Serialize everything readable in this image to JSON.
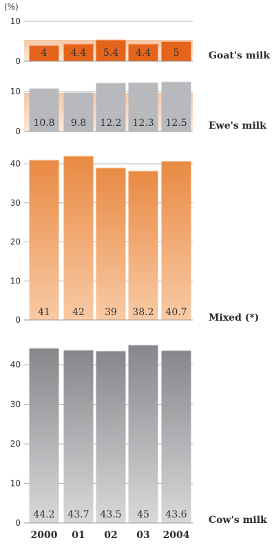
{
  "unit_label": "(%)",
  "chart_data": [
    {
      "type": "bar",
      "name": "Goat's milk",
      "categories": [
        "2000",
        "01",
        "02",
        "03",
        "2004"
      ],
      "values": [
        4,
        4.4,
        5.4,
        4.4,
        5
      ],
      "value_labels": [
        "4",
        "4.4",
        "5.4",
        "4.4",
        "5"
      ],
      "ylim": [
        0,
        10
      ],
      "yticks": [
        0,
        10
      ],
      "bar_color": "#e5641b",
      "band_color": "#f6dccb"
    },
    {
      "type": "bar",
      "name": "Ewe's milk",
      "categories": [
        "2000",
        "01",
        "02",
        "03",
        "2004"
      ],
      "values": [
        10.8,
        9.8,
        12.2,
        12.3,
        12.5
      ],
      "value_labels": [
        "10.8",
        "9.8",
        "12.2",
        "12.3",
        "12.5"
      ],
      "ylim": [
        0,
        10
      ],
      "yticks": [
        0,
        10
      ],
      "bar_color": "#b8b9bc",
      "band_color": "#f6dccb"
    },
    {
      "type": "bar",
      "name": "Mixed (*)",
      "categories": [
        "2000",
        "01",
        "02",
        "03",
        "2004"
      ],
      "values": [
        41,
        42,
        39,
        38.2,
        40.7
      ],
      "value_labels": [
        "41",
        "42",
        "39",
        "38.2",
        "40.7"
      ],
      "ylim": [
        0,
        40
      ],
      "yticks": [
        0,
        10,
        20,
        30,
        40
      ],
      "bar_color_top": "#e98a43",
      "bar_color_bottom": "#f8caa5"
    },
    {
      "type": "bar",
      "name": "Cow's milk",
      "categories": [
        "2000",
        "01",
        "02",
        "03",
        "2004"
      ],
      "values": [
        44.2,
        43.7,
        43.5,
        45,
        43.6
      ],
      "value_labels": [
        "44.2",
        "43.7",
        "43.5",
        "45",
        "43.6"
      ],
      "ylim": [
        0,
        40
      ],
      "yticks": [
        0,
        10,
        20,
        30,
        40
      ],
      "bar_color_top": "#8a8b8e",
      "bar_color_bottom": "#d6d7d9"
    }
  ],
  "x_labels": [
    "2000",
    "01",
    "02",
    "03",
    "2004"
  ]
}
